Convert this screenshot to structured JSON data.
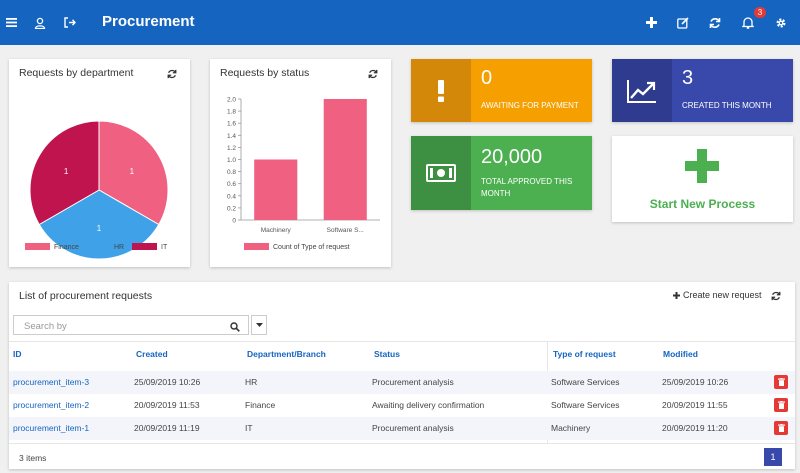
{
  "app": {
    "title": "Procurement",
    "notification_count": "3"
  },
  "department_card": {
    "title": "Requests by department",
    "legend": [
      "Finance",
      "HR",
      "IT"
    ],
    "slice_labels": [
      "1",
      "1",
      "1"
    ],
    "colors": {
      "finance": "#f06080",
      "hr": "#3fa2e8",
      "it": "#c0144e"
    }
  },
  "status_card": {
    "title": "Requests by status"
  },
  "chart_data": [
    {
      "type": "pie",
      "title": "Requests by department",
      "categories": [
        "Finance",
        "HR",
        "IT"
      ],
      "values": [
        1,
        1,
        1
      ]
    },
    {
      "type": "bar",
      "title": "Requests by status",
      "categories": [
        "Machinery",
        "Software S..."
      ],
      "series": [
        {
          "name": "Count of Type of request",
          "values": [
            1,
            2
          ]
        }
      ],
      "ylim": [
        0,
        2
      ],
      "y_ticks": [
        "2.0",
        "1.8",
        "1.6",
        "1.4",
        "1.2",
        "1.0",
        "0.8",
        "0.6",
        "0.4",
        "0.2",
        "0"
      ],
      "legend_placement": "bottom",
      "grid": false,
      "color": "#f06080"
    }
  ],
  "tiles": {
    "awaiting": {
      "value": "0",
      "label": "AWAITING FOR PAYMENT",
      "color": "#f5a000",
      "icon_bg": "#d4880a"
    },
    "created": {
      "value": "3",
      "label": "CREATED THIS MONTH",
      "color": "#3949ab",
      "icon_bg": "#2e3b8f"
    },
    "approved": {
      "value": "20,000",
      "label_line1": "TOTAL APPROVED THIS",
      "label_line2": "MONTH",
      "color": "#4caf50",
      "icon_bg": "#3d8f41"
    },
    "new_process": {
      "label": "Start New Process",
      "color": "#4caf50"
    }
  },
  "list": {
    "title": "List of procurement requests",
    "create_label": "Create new request",
    "search_placeholder": "Search by",
    "columns": [
      "ID",
      "Created",
      "Department/Branch",
      "Status",
      "Type of request",
      "Modified"
    ],
    "rows": [
      {
        "id": "procurement_item-3",
        "created": "25/09/2019 10:26",
        "department": "HR",
        "status": "Procurement analysis",
        "type": "Software Services",
        "modified": "25/09/2019 10:26"
      },
      {
        "id": "procurement_item-2",
        "created": "20/09/2019 11:53",
        "department": "Finance",
        "status": "Awaiting delivery confirmation",
        "type": "Software Services",
        "modified": "20/09/2019 11:55"
      },
      {
        "id": "procurement_item-1",
        "created": "20/09/2019 11:19",
        "department": "IT",
        "status": "Procurement analysis",
        "type": "Machinery",
        "modified": "20/09/2019 11:20"
      }
    ],
    "count_label": "3 items",
    "page": "1"
  }
}
